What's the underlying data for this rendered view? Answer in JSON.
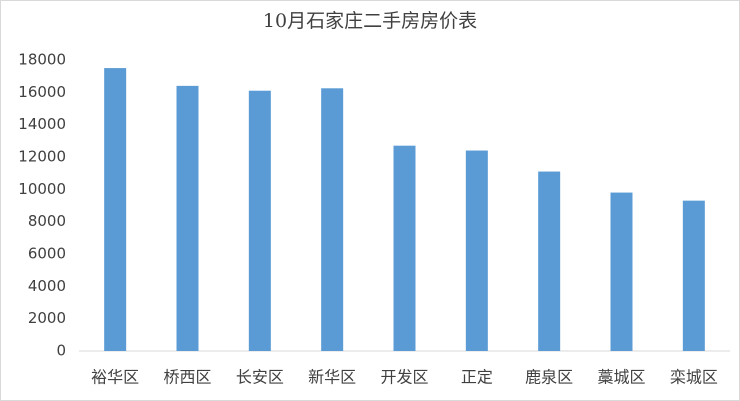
{
  "chart_data": {
    "type": "bar",
    "title": "10月石家庄二手房房价表",
    "categories": [
      "裕华区",
      "桥西区",
      "长安区",
      "新华区",
      "开发区",
      "正定",
      "鹿泉区",
      "藁城区",
      "栾城区"
    ],
    "values": [
      17500,
      16400,
      16100,
      16250,
      12700,
      12400,
      11100,
      9800,
      9300
    ],
    "color": "#5b9bd5",
    "ylim": [
      0,
      18000
    ],
    "yticks": [
      0,
      2000,
      4000,
      6000,
      8000,
      10000,
      12000,
      14000,
      16000,
      18000
    ],
    "grid": false
  }
}
